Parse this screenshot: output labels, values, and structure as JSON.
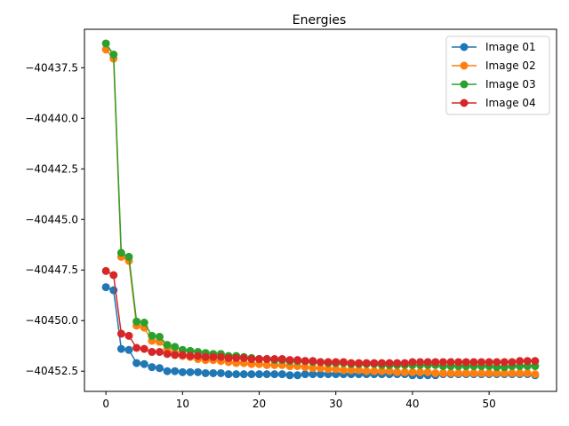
{
  "chart_data": {
    "type": "line",
    "title": "Energies",
    "xlabel": "",
    "ylabel": "",
    "xlim": [
      -2.8,
      58.8
    ],
    "ylim": [
      -40453.5,
      -40435.6
    ],
    "x_ticks": [
      0,
      10,
      20,
      30,
      40,
      50
    ],
    "x_tick_labels": [
      "0",
      "10",
      "20",
      "30",
      "40",
      "50"
    ],
    "y_ticks": [
      -40437.5,
      -40440.0,
      -40442.5,
      -40445.0,
      -40447.5,
      -40450.0,
      -40452.5
    ],
    "y_tick_labels": [
      "−40437.5",
      "−40440.0",
      "−40442.5",
      "−40445.0",
      "−40447.5",
      "−40450.0",
      "−40452.5"
    ],
    "grid": false,
    "legend_position": "top-right",
    "x": [
      0,
      1,
      2,
      3,
      4,
      5,
      6,
      7,
      8,
      9,
      10,
      11,
      12,
      13,
      14,
      15,
      16,
      17,
      18,
      19,
      20,
      21,
      22,
      23,
      24,
      25,
      26,
      27,
      28,
      29,
      30,
      31,
      32,
      33,
      34,
      35,
      36,
      37,
      38,
      39,
      40,
      41,
      42,
      43,
      44,
      45,
      46,
      47,
      48,
      49,
      50,
      51,
      52,
      53,
      54,
      55,
      56
    ],
    "series": [
      {
        "name": "Image 01",
        "color": "#1f77b4",
        "values": [
          -40448.35,
          -40448.5,
          -40451.4,
          -40451.45,
          -40452.1,
          -40452.15,
          -40452.3,
          -40452.35,
          -40452.5,
          -40452.5,
          -40452.55,
          -40452.55,
          -40452.55,
          -40452.6,
          -40452.6,
          -40452.6,
          -40452.65,
          -40452.65,
          -40452.65,
          -40452.65,
          -40452.65,
          -40452.65,
          -40452.65,
          -40452.65,
          -40452.7,
          -40452.7,
          -40452.65,
          -40452.65,
          -40452.65,
          -40452.65,
          -40452.65,
          -40452.65,
          -40452.65,
          -40452.65,
          -40452.65,
          -40452.65,
          -40452.65,
          -40452.65,
          -40452.65,
          -40452.65,
          -40452.7,
          -40452.7,
          -40452.7,
          -40452.7,
          -40452.65,
          -40452.65,
          -40452.65,
          -40452.65,
          -40452.65,
          -40452.65,
          -40452.65,
          -40452.65,
          -40452.65,
          -40452.65,
          -40452.65,
          -40452.65,
          -40452.7
        ]
      },
      {
        "name": "Image 02",
        "color": "#ff7f0e",
        "values": [
          -40436.6,
          -40437.05,
          -40446.85,
          -40447.05,
          -40450.25,
          -40450.35,
          -40451.0,
          -40451.05,
          -40451.4,
          -40451.6,
          -40451.75,
          -40451.8,
          -40451.9,
          -40451.95,
          -40451.95,
          -40452.0,
          -40452.05,
          -40452.1,
          -40452.1,
          -40452.15,
          -40452.15,
          -40452.2,
          -40452.2,
          -40452.2,
          -40452.25,
          -40452.25,
          -40452.3,
          -40452.35,
          -40452.35,
          -40452.4,
          -40452.4,
          -40452.45,
          -40452.45,
          -40452.45,
          -40452.5,
          -40452.5,
          -40452.5,
          -40452.5,
          -40452.55,
          -40452.55,
          -40452.55,
          -40452.55,
          -40452.55,
          -40452.6,
          -40452.6,
          -40452.6,
          -40452.6,
          -40452.6,
          -40452.6,
          -40452.6,
          -40452.6,
          -40452.6,
          -40452.6,
          -40452.6,
          -40452.6,
          -40452.6,
          -40452.65
        ]
      },
      {
        "name": "Image 03",
        "color": "#2ca02c",
        "values": [
          -40436.3,
          -40436.85,
          -40446.65,
          -40446.85,
          -40450.05,
          -40450.1,
          -40450.75,
          -40450.8,
          -40451.2,
          -40451.3,
          -40451.45,
          -40451.5,
          -40451.55,
          -40451.6,
          -40451.65,
          -40451.65,
          -40451.75,
          -40451.75,
          -40451.8,
          -40451.85,
          -40451.9,
          -40451.9,
          -40451.95,
          -40451.95,
          -40452.0,
          -40452.0,
          -40452.0,
          -40452.05,
          -40452.05,
          -40452.1,
          -40452.1,
          -40452.1,
          -40452.15,
          -40452.15,
          -40452.15,
          -40452.15,
          -40452.2,
          -40452.2,
          -40452.2,
          -40452.2,
          -40452.2,
          -40452.2,
          -40452.2,
          -40452.2,
          -40452.25,
          -40452.25,
          -40452.25,
          -40452.25,
          -40452.25,
          -40452.25,
          -40452.25,
          -40452.3,
          -40452.3,
          -40452.25,
          -40452.25,
          -40452.25,
          -40452.25
        ]
      },
      {
        "name": "Image 04",
        "color": "#d62728",
        "values": [
          -40447.55,
          -40447.75,
          -40450.65,
          -40450.75,
          -40451.35,
          -40451.4,
          -40451.55,
          -40451.55,
          -40451.65,
          -40451.7,
          -40451.7,
          -40451.75,
          -40451.75,
          -40451.8,
          -40451.8,
          -40451.8,
          -40451.85,
          -40451.85,
          -40451.85,
          -40451.9,
          -40451.9,
          -40451.9,
          -40451.9,
          -40451.9,
          -40451.95,
          -40451.95,
          -40452.0,
          -40452.0,
          -40452.05,
          -40452.05,
          -40452.05,
          -40452.05,
          -40452.1,
          -40452.1,
          -40452.1,
          -40452.1,
          -40452.1,
          -40452.1,
          -40452.1,
          -40452.1,
          -40452.05,
          -40452.05,
          -40452.05,
          -40452.05,
          -40452.05,
          -40452.05,
          -40452.05,
          -40452.05,
          -40452.05,
          -40452.05,
          -40452.05,
          -40452.05,
          -40452.05,
          -40452.05,
          -40452.0,
          -40452.0,
          -40452.0
        ]
      }
    ]
  }
}
